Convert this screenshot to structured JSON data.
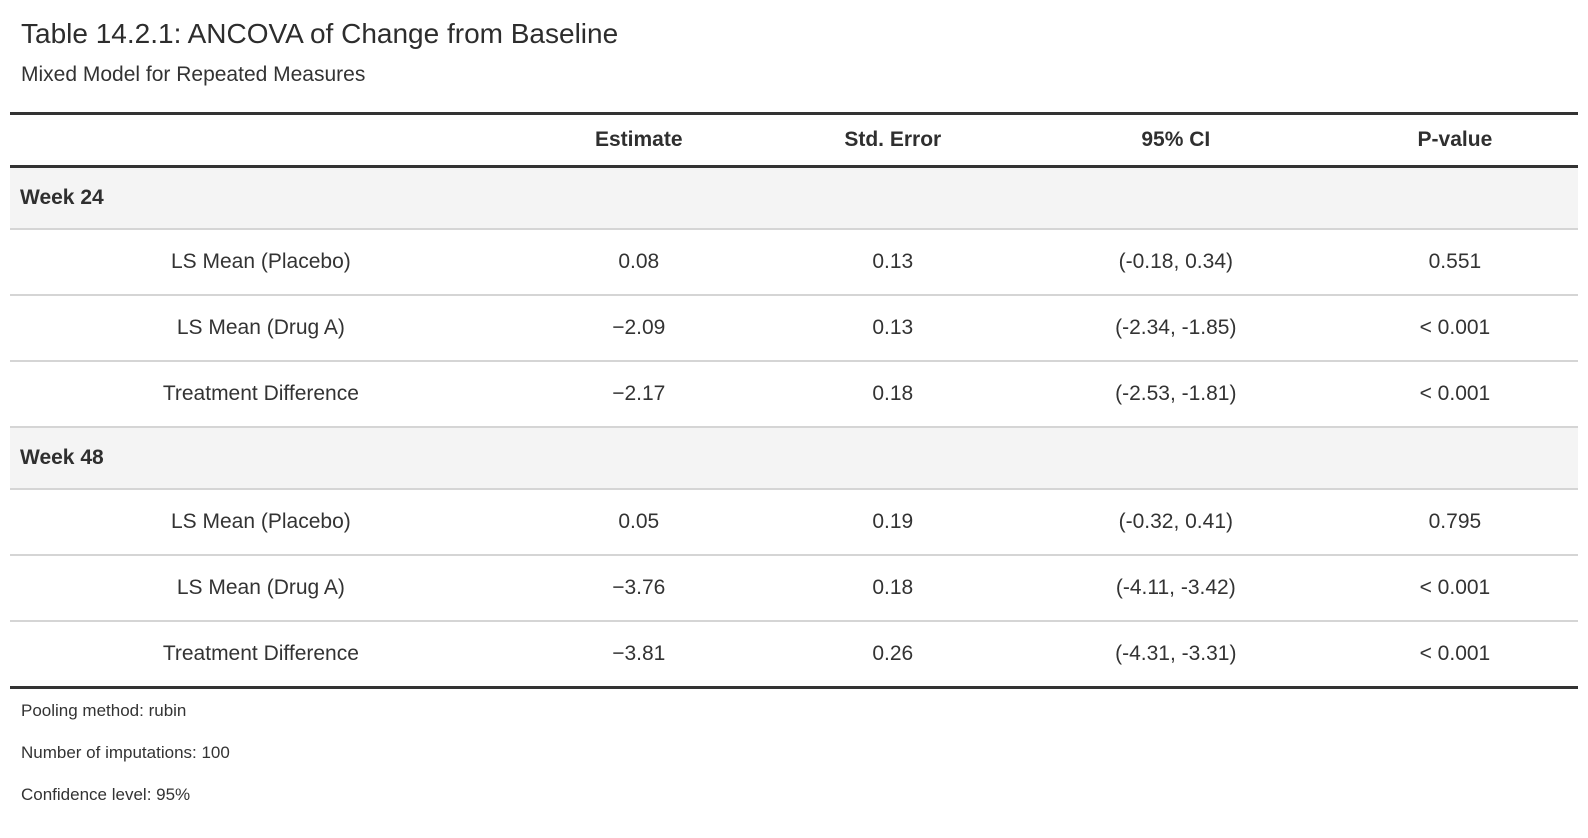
{
  "title": "Table 14.2.1: ANCOVA of Change from Baseline",
  "subtitle": "Mixed Model for Repeated Measures",
  "table": {
    "columns": {
      "stub": "",
      "estimate": "Estimate",
      "std_error": "Std. Error",
      "ci": "95% CI",
      "p_value": "P-value"
    },
    "groups": [
      {
        "label": "Week 24",
        "rows": [
          {
            "label": "LS Mean (Placebo)",
            "estimate": "0.08",
            "std_error": "0.13",
            "ci": "(-0.18, 0.34)",
            "p_value": "0.551"
          },
          {
            "label": "LS Mean (Drug A)",
            "estimate": "−2.09",
            "std_error": "0.13",
            "ci": "(-2.34, -1.85)",
            "p_value": "< 0.001"
          },
          {
            "label": "Treatment Difference",
            "estimate": "−2.17",
            "std_error": "0.18",
            "ci": "(-2.53, -1.81)",
            "p_value": "< 0.001"
          }
        ]
      },
      {
        "label": "Week 48",
        "rows": [
          {
            "label": "LS Mean (Placebo)",
            "estimate": "0.05",
            "std_error": "0.19",
            "ci": "(-0.32, 0.41)",
            "p_value": "0.795"
          },
          {
            "label": "LS Mean (Drug A)",
            "estimate": "−3.76",
            "std_error": "0.18",
            "ci": "(-4.11, -3.42)",
            "p_value": "< 0.001"
          },
          {
            "label": "Treatment Difference",
            "estimate": "−3.81",
            "std_error": "0.26",
            "ci": "(-4.31, -3.31)",
            "p_value": "< 0.001"
          }
        ]
      }
    ],
    "footnotes": [
      "Pooling method: rubin",
      "Number of imputations: 100",
      "Confidence level: 95%"
    ]
  },
  "colors": {
    "page_bg": "#ffffff",
    "text": "#333333",
    "thick_border": "#333333",
    "light_border": "#d5d5d5",
    "group_row_bg": "#f4f4f4"
  }
}
